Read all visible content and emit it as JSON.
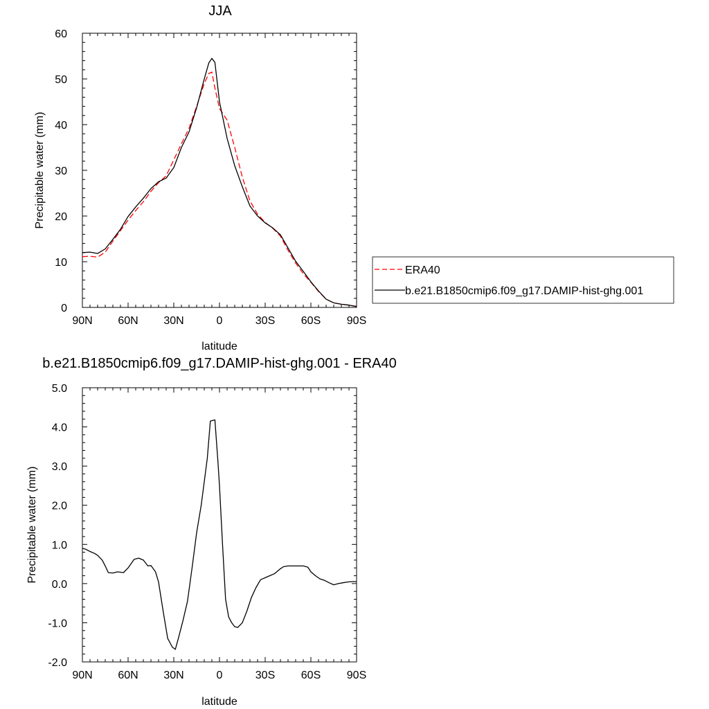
{
  "chart_data": [
    {
      "type": "line",
      "title": "JJA",
      "xlabel": "latitude",
      "ylabel": "Precipitable water (mm)",
      "xlim": [
        90,
        -90
      ],
      "ylim": [
        0,
        60
      ],
      "x_ticks": [
        90,
        60,
        30,
        0,
        -30,
        -60,
        -90
      ],
      "x_tick_labels": [
        "90N",
        "60N",
        "30N",
        "0",
        "30S",
        "60S",
        "90S"
      ],
      "y_ticks": [
        0,
        10,
        20,
        30,
        40,
        50,
        60
      ],
      "y_tick_labels": [
        "0",
        "10",
        "20",
        "30",
        "40",
        "50",
        "60"
      ],
      "legend_position": "right",
      "series": [
        {
          "name": "ERA40",
          "color": "#ff0000",
          "dash": "dashed",
          "x": [
            90,
            85,
            80,
            75,
            70,
            65,
            60,
            55,
            50,
            45,
            40,
            35,
            30,
            25,
            20,
            15,
            10,
            7,
            5,
            3,
            0,
            -5,
            -10,
            -15,
            -20,
            -25,
            -30,
            -35,
            -40,
            -45,
            -50,
            -55,
            -60,
            -65,
            -70,
            -75,
            -80,
            -85,
            -90
          ],
          "y": [
            11.1,
            11.2,
            11.0,
            12.1,
            14.5,
            16.8,
            19.1,
            21.2,
            23.1,
            25.4,
            27.3,
            28.8,
            32.3,
            35.8,
            39.2,
            44.0,
            49.0,
            51.2,
            51.5,
            48.0,
            43.5,
            41.0,
            35.0,
            28.5,
            23.3,
            20.4,
            18.6,
            17.3,
            15.6,
            12.5,
            9.7,
            7.4,
            5.5,
            3.5,
            1.8,
            1.0,
            0.7,
            0.5,
            0.2
          ]
        },
        {
          "name": "b.e21.B1850cmip6.f09_g17.DAMIP-hist-ghg.001",
          "color": "#000000",
          "dash": "solid",
          "x": [
            90,
            85,
            80,
            75,
            70,
            65,
            60,
            55,
            50,
            45,
            40,
            35,
            30,
            25,
            20,
            15,
            10,
            7,
            5,
            3,
            0,
            -5,
            -10,
            -15,
            -20,
            -25,
            -30,
            -35,
            -40,
            -45,
            -50,
            -55,
            -60,
            -65,
            -70,
            -75,
            -80,
            -85,
            -90
          ],
          "y": [
            12.0,
            12.1,
            11.8,
            12.8,
            14.9,
            17.1,
            19.9,
            22.0,
            23.9,
            26.0,
            27.5,
            28.3,
            30.6,
            35.0,
            38.4,
            43.7,
            50.0,
            53.5,
            54.5,
            53.6,
            45.0,
            37.0,
            31.0,
            26.4,
            22.2,
            20.0,
            18.5,
            17.4,
            15.9,
            13.0,
            10.1,
            7.9,
            5.6,
            3.6,
            1.8,
            1.0,
            0.7,
            0.5,
            0.2
          ]
        }
      ]
    },
    {
      "type": "line",
      "title": "b.e21.B1850cmip6.f09_g17.DAMIP-hist-ghg.001 - ERA40",
      "xlabel": "latitude",
      "ylabel": "Precipitable water (mm)",
      "xlim": [
        90,
        -90
      ],
      "ylim": [
        -2,
        5
      ],
      "x_ticks": [
        90,
        60,
        30,
        0,
        -30,
        -60,
        -90
      ],
      "x_tick_labels": [
        "90N",
        "60N",
        "30N",
        "0",
        "30S",
        "60S",
        "90S"
      ],
      "y_ticks": [
        -2,
        -1,
        0,
        1,
        2,
        3,
        4,
        5
      ],
      "y_tick_labels": [
        "-2.0",
        "-1.0",
        "0.0",
        "1.0",
        "2.0",
        "3.0",
        "4.0",
        "5.0"
      ],
      "series": [
        {
          "color": "#000000",
          "dash": "solid",
          "x": [
            90,
            88,
            85,
            82,
            80,
            77,
            75,
            73,
            70,
            67,
            63,
            60,
            56,
            53,
            50,
            47,
            45,
            42,
            40,
            37,
            34,
            31,
            29,
            27,
            24,
            21,
            18,
            15,
            12,
            10,
            8,
            6,
            3,
            1,
            0,
            -2,
            -4,
            -6,
            -8,
            -10,
            -12,
            -15,
            -18,
            -21,
            -24,
            -27,
            -30,
            -33,
            -36,
            -40,
            -42,
            -45,
            -48,
            -50,
            -52,
            -55,
            -58,
            -60,
            -63,
            -66,
            -69,
            -72,
            -75,
            -78,
            -81,
            -84,
            -87,
            -90
          ],
          "y": [
            0.9,
            0.88,
            0.82,
            0.77,
            0.72,
            0.6,
            0.45,
            0.28,
            0.27,
            0.3,
            0.28,
            0.4,
            0.62,
            0.65,
            0.6,
            0.45,
            0.46,
            0.3,
            0.04,
            -0.7,
            -1.4,
            -1.62,
            -1.68,
            -1.4,
            -0.95,
            -0.45,
            0.4,
            1.3,
            2.0,
            2.6,
            3.2,
            4.15,
            4.18,
            3.1,
            2.5,
            1.0,
            -0.4,
            -0.85,
            -1.0,
            -1.1,
            -1.12,
            -1.0,
            -0.7,
            -0.35,
            -0.1,
            0.1,
            0.15,
            0.2,
            0.25,
            0.38,
            0.43,
            0.45,
            0.45,
            0.45,
            0.45,
            0.45,
            0.42,
            0.3,
            0.2,
            0.12,
            0.08,
            0.02,
            -0.03,
            0.0,
            0.02,
            0.04,
            0.05,
            0.05
          ]
        }
      ]
    }
  ]
}
